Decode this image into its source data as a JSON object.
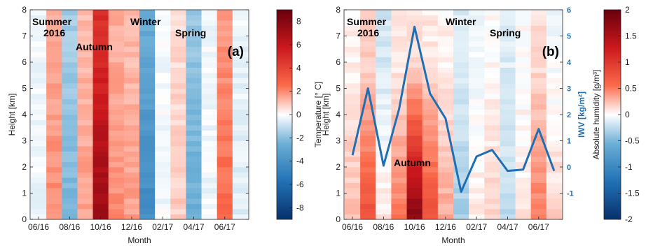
{
  "chart_data": [
    {
      "type": "heatmap",
      "panel_label": "(a)",
      "xlabel": "Month",
      "ylabel": "Height [km]",
      "colorbar_label": "Temperature [° C]",
      "colorbar_ticks": [
        8,
        6,
        4,
        2,
        0,
        -2,
        -4,
        -6,
        -8
      ],
      "colorbar_range": [
        -9,
        9
      ],
      "colormap": [
        "#08306b",
        "#2171b5",
        "#6baed6",
        "#ffffff",
        "#fb6a4a",
        "#cb181d",
        "#67000d"
      ],
      "x_tick_labels": [
        "06/16",
        "08/16",
        "10/16",
        "12/16",
        "02/17",
        "04/17",
        "06/17"
      ],
      "y_ticks": [
        0,
        1,
        2,
        3,
        4,
        5,
        6,
        7,
        8
      ],
      "ylim": [
        0,
        8
      ],
      "months": [
        "06/16",
        "07/16",
        "08/16",
        "09/16",
        "10/16",
        "11/16",
        "12/16",
        "01/17",
        "02/17",
        "03/17",
        "04/17",
        "05/17",
        "06/17",
        "07/17"
      ],
      "values": [
        -0.3,
        2.3,
        -2.6,
        1.9,
        7.3,
        2.3,
        1.9,
        -4.6,
        -0.2,
        1.0,
        -3.0,
        -0.3,
        3.0,
        -0.6
      ],
      "season_labels": [
        {
          "text": "Summer",
          "month_index": 0
        },
        {
          "text": "2016",
          "month_index": 0.7
        },
        {
          "text": "Autumn",
          "month_index": 4.3
        },
        {
          "text": "Winter",
          "month_index": 7.2
        },
        {
          "text": "Spring",
          "month_index": 10.2
        }
      ]
    },
    {
      "type": "heatmap",
      "panel_label": "(b)",
      "xlabel": "Month",
      "ylabel": "Height [km]",
      "colorbar_label": "Absolute humidity [g/m³]",
      "colorbar_ticks": [
        "2",
        "1.5",
        "1",
        "0.5",
        "0",
        "-0.5",
        "-1",
        "-1.5",
        "-2"
      ],
      "colorbar_range": [
        -2,
        2
      ],
      "colormap": [
        "#08306b",
        "#2171b5",
        "#6baed6",
        "#ffffff",
        "#fb6a4a",
        "#cb181d",
        "#67000d"
      ],
      "x_tick_labels": [
        "06/16",
        "08/16",
        "10/16",
        "12/16",
        "02/17",
        "04/17",
        "06/17"
      ],
      "y_ticks": [
        0,
        1,
        2,
        3,
        4,
        5,
        6,
        7,
        8
      ],
      "ylim": [
        0,
        8
      ],
      "months": [
        "06/16",
        "07/16",
        "08/16",
        "09/16",
        "10/16",
        "11/16",
        "12/16",
        "01/17",
        "02/17",
        "03/17",
        "04/17",
        "05/17",
        "06/17",
        "07/17"
      ],
      "values_low": [
        0.3,
        0.9,
        0.1,
        0.6,
        1.8,
        0.9,
        0.4,
        -0.4,
        0.1,
        0.2,
        -0.3,
        0.1,
        0.6,
        0.2
      ],
      "values_high": [
        0.05,
        0.2,
        -0.2,
        0.1,
        0.15,
        0.1,
        0.05,
        -0.15,
        -0.05,
        0.0,
        -0.15,
        0.0,
        0.15,
        -0.05
      ],
      "line_series": {
        "name": "IWV [kg/m²]",
        "color": "#1f6fb5",
        "y_axis_label": "IWV [kg/m²]",
        "y_ticks": [
          -1,
          0,
          1,
          2,
          3,
          4,
          5,
          6
        ],
        "ylim": [
          -2,
          6
        ],
        "values": [
          0.45,
          3.0,
          0.05,
          2.2,
          5.35,
          2.8,
          1.85,
          -0.95,
          0.4,
          0.65,
          -0.15,
          -0.1,
          1.45,
          -0.15
        ]
      },
      "season_labels": [
        {
          "text": "Summer",
          "month_index": 0.6
        },
        {
          "text": "2016",
          "month_index": 0.8
        },
        {
          "text": "Autumn",
          "month_index": 4.3
        },
        {
          "text": "Winter",
          "month_index": 7.8
        },
        {
          "text": "Spring",
          "month_index": 10.2
        }
      ]
    }
  ]
}
